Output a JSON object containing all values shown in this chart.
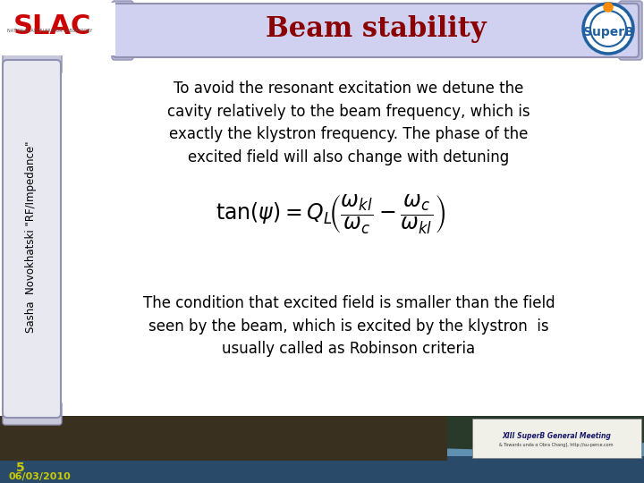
{
  "title": "Beam stability",
  "title_color": "#8B0000",
  "scroll_bg": "#D0D0F0",
  "scroll_border": "#9090B0",
  "sidebar_text": "Sasha  Novokhatski \"RF/Impedance\"",
  "sidebar_bg": "#E8E8F0",
  "sidebar_border": "#9090B0",
  "main_bg": "#FFFFFF",
  "para1": "To avoid the resonant excitation we detune the\ncavity relatively to the beam frequency, which is\nexactly the klystron frequency. The phase of the\nexcited field will also change with detuning",
  "para2": "The condition that excited field is smaller than the field\nseen by the beam, which is excited by the klystron  is\nusually called as Robinson criteria",
  "footer_number": "5",
  "footer_date": "06/03/2010",
  "footer_num_color": "#CCCC00",
  "footer_date_color": "#CCCC00"
}
